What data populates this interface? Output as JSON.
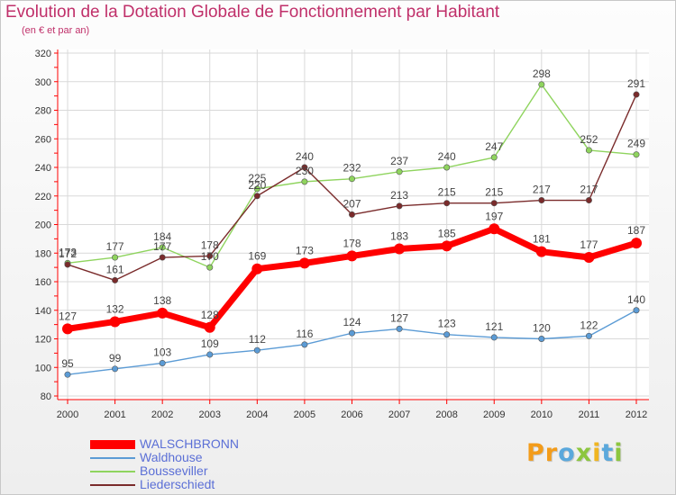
{
  "title": "Evolution de la Dotation Globale de Fonctionnement par Habitant",
  "subtitle": "(en € et par an)",
  "logo": {
    "text": "Proxiti",
    "letter_colors": [
      "#f39c1a",
      "#f39c1a",
      "#5aa8dc",
      "#8cc63f",
      "#f0b520",
      "#5aa8dc",
      "#8cc63f"
    ]
  },
  "colors": {
    "title": "#c0306a",
    "axis": "#ff0000",
    "grid": "#d9d9d9",
    "legend_text": "#5b6fd6"
  },
  "chart_data": {
    "type": "line",
    "title": "Evolution de la Dotation Globale de Fonctionnement par Habitant",
    "subtitle": "(en € et par an)",
    "x": [
      2000,
      2001,
      2002,
      2003,
      2004,
      2005,
      2006,
      2007,
      2008,
      2009,
      2010,
      2011,
      2012
    ],
    "y_ticks": [
      80,
      100,
      120,
      140,
      160,
      180,
      200,
      220,
      240,
      260,
      280,
      300,
      320
    ],
    "ylim": [
      80,
      320
    ],
    "grid": true,
    "legend_position": "bottom-left",
    "series": [
      {
        "name": "WALSCHBRONN",
        "color": "#ff0000",
        "values": [
          127,
          132,
          138,
          128,
          169,
          173,
          178,
          183,
          185,
          197,
          181,
          177,
          187
        ],
        "labels": [
          "127",
          "132",
          "138",
          "128",
          "169",
          "173",
          "178",
          "183",
          "185",
          "197",
          "181",
          "177",
          "187"
        ]
      },
      {
        "name": "Waldhouse",
        "color": "#5b9bd5",
        "values": [
          95,
          99,
          103,
          109,
          112,
          116,
          124,
          127,
          123,
          121,
          120,
          122,
          140
        ],
        "labels": [
          "95",
          "99",
          "103",
          "109",
          "112",
          "116",
          "124",
          "127",
          "123",
          "121",
          "120",
          "122",
          "140"
        ]
      },
      {
        "name": "Bousseviller",
        "color": "#8fd45e",
        "values": [
          173,
          177,
          184,
          170,
          225,
          230,
          232,
          237,
          240,
          247,
          298,
          252,
          249
        ],
        "labels": [
          "173",
          "177",
          "184",
          "170",
          "225",
          "230",
          "232",
          "237",
          "240",
          "247",
          "298",
          "252",
          "249"
        ]
      },
      {
        "name": "Liederschiedt",
        "color": "#7a2b2b",
        "values": [
          172,
          161,
          177,
          178,
          220,
          240,
          207,
          213,
          215,
          215,
          217,
          217,
          291
        ],
        "labels": [
          "172",
          "161",
          "177",
          "178",
          "220",
          "240",
          "207",
          "213",
          "215",
          "215",
          "217",
          "217",
          "291"
        ]
      }
    ]
  }
}
